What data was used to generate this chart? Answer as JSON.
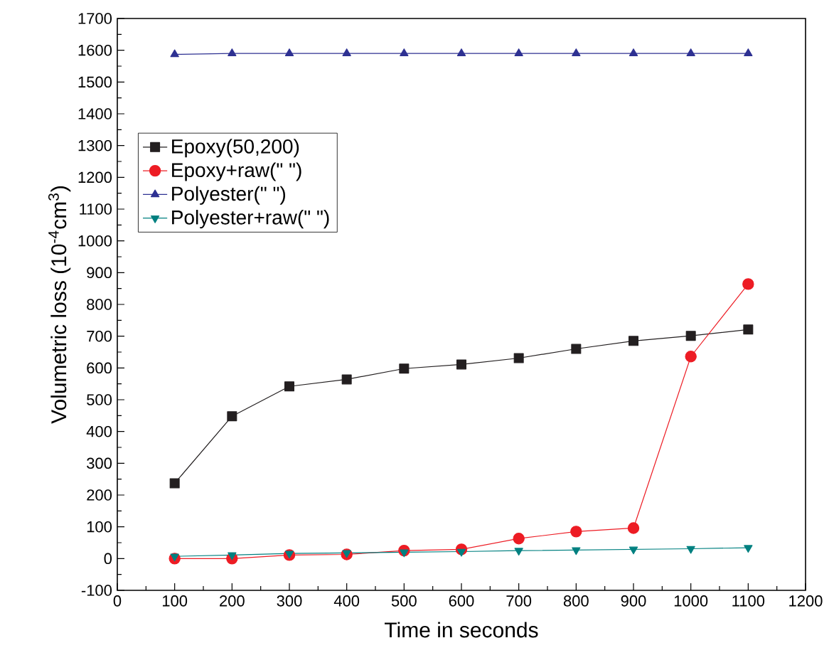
{
  "chart_data": {
    "type": "line",
    "xlabel": "Time in seconds",
    "ylabel": "Volumetric loss (10$^{-4}$cm$^{3}$)",
    "x": [
      100,
      200,
      300,
      400,
      500,
      600,
      700,
      800,
      900,
      1000,
      1100
    ],
    "series": [
      {
        "name": "Epoxy(50,200)",
        "color": "#231f20",
        "marker": "square",
        "values": [
          237,
          448,
          542,
          564,
          598,
          611,
          631,
          660,
          685,
          701,
          721
        ]
      },
      {
        "name": "Epoxy+raw(\" \")",
        "color": "#ed1c24",
        "marker": "circle",
        "values": [
          0,
          0,
          11,
          13,
          25,
          29,
          63,
          85,
          96,
          636,
          864
        ]
      },
      {
        "name": "Polyester(\" \")",
        "color": "#2e3192",
        "marker": "triangle",
        "values": [
          1587,
          1590,
          1590,
          1590,
          1590,
          1590,
          1590,
          1590,
          1590,
          1590,
          1590
        ]
      },
      {
        "name": "Polyester+raw(\" \")",
        "color": "#008080",
        "marker": "triangle down",
        "values": [
          7,
          11,
          16,
          18,
          20,
          22,
          25,
          27,
          29,
          31,
          34
        ]
      }
    ],
    "xlim": [
      0,
      1200
    ],
    "xticks": [
      0,
      100,
      200,
      300,
      400,
      500,
      600,
      700,
      800,
      900,
      1000,
      1100,
      1200
    ],
    "ylim": [
      -100,
      1700
    ],
    "yticks": [
      -100,
      0,
      100,
      200,
      300,
      400,
      500,
      600,
      700,
      800,
      900,
      1000,
      1100,
      1200,
      1300,
      1400,
      1500,
      1600,
      1700
    ],
    "legend": "left",
    "grid": false,
    "line_style": "solid"
  }
}
